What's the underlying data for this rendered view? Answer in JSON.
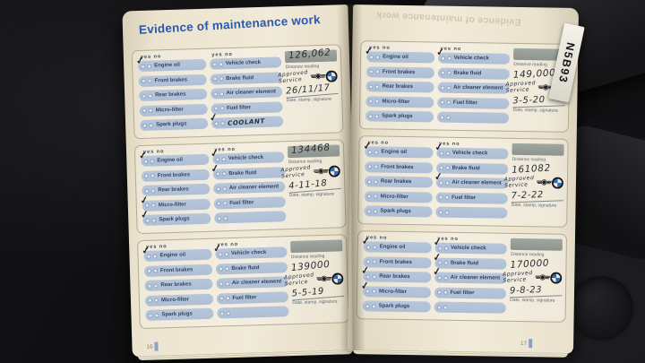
{
  "page": {
    "title": "Evidence of maintenance work",
    "mirrored_title": "Evidence of maintenance work",
    "left_page_number": "16",
    "right_page_number": "17",
    "sticker_label": "N5B93"
  },
  "labels": {
    "yes": "yes",
    "no": "no",
    "check_glyph": "✓",
    "left_items": [
      "Engine oil",
      "Front brakes",
      "Rear brakes",
      "Micro-filter",
      "Spark plugs"
    ],
    "right_items": [
      "Vehicle check",
      "Brake fluid",
      "Air cleaner element",
      "Fuel filter"
    ],
    "distance_reading": "Distance reading",
    "date_stamp_signature": "Date, stamp, signature",
    "approved_line1": "Approved",
    "approved_line2": "Service"
  },
  "colors": {
    "title_blue": "#2a5aab",
    "pill_blue": "#aebfd5",
    "page_cream": "#f0e9d6"
  },
  "records": [
    {
      "distance": "126,062",
      "distance_in_box": true,
      "date": "26/11/17",
      "left_checks": [
        true,
        false,
        false,
        false,
        false
      ],
      "right_checks": [
        false,
        false,
        false,
        false
      ],
      "extra_text": "COOLANT",
      "extra_checked": true
    },
    {
      "distance": "134468",
      "distance_in_box": true,
      "date": "4-11-18",
      "left_checks": [
        true,
        false,
        false,
        true,
        true
      ],
      "right_checks": [
        true,
        true,
        false,
        false
      ],
      "extra_text": "",
      "extra_checked": false
    },
    {
      "distance": "139000",
      "distance_in_box": false,
      "date": "5-5-19",
      "left_checks": [
        true,
        false,
        false,
        false,
        false
      ],
      "right_checks": [
        true,
        false,
        false,
        false
      ],
      "extra_text": "",
      "extra_checked": false
    },
    {
      "distance": "149,000",
      "distance_in_box": false,
      "date": "3-5-20",
      "left_checks": [
        true,
        false,
        false,
        false,
        false
      ],
      "right_checks": [
        true,
        false,
        false,
        false
      ],
      "extra_text": "",
      "extra_checked": false
    },
    {
      "distance": "161082",
      "distance_in_box": false,
      "date": "7-2-22",
      "left_checks": [
        true,
        false,
        false,
        false,
        false
      ],
      "right_checks": [
        true,
        false,
        true,
        false
      ],
      "extra_text": "",
      "extra_checked": false
    },
    {
      "distance": "170000",
      "distance_in_box": false,
      "date": "9-8-23",
      "left_checks": [
        true,
        false,
        true,
        true,
        false
      ],
      "right_checks": [
        true,
        true,
        true,
        false
      ],
      "extra_text": "",
      "extra_checked": false
    }
  ]
}
